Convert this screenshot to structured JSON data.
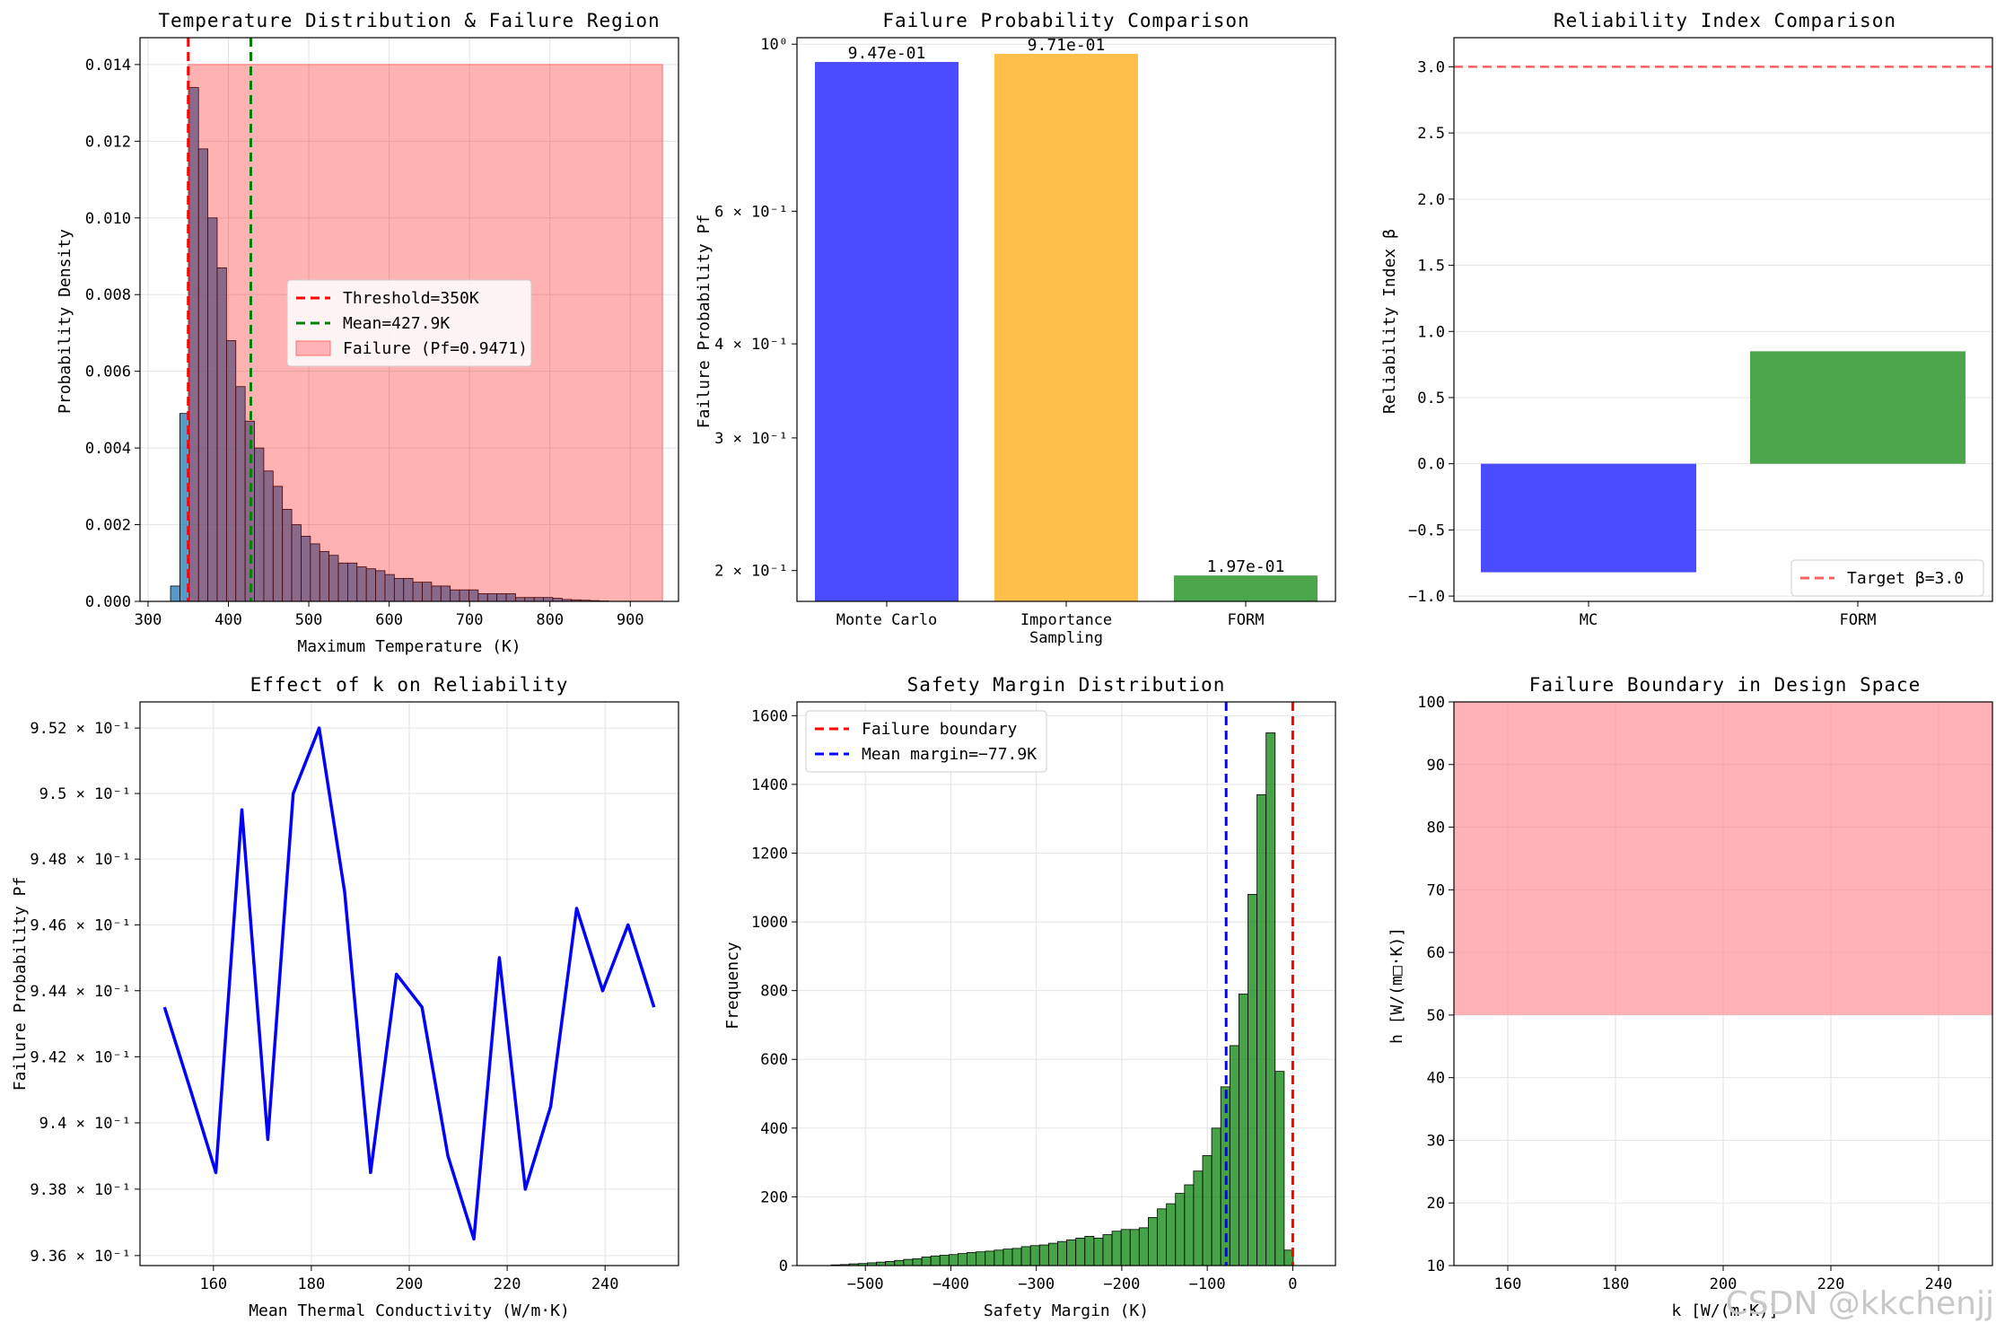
{
  "watermark": "CSDN @kkchenjj",
  "colors": {
    "blue": "#0000ff",
    "red": "#ff0000",
    "green": "#008000",
    "orange": "#ffa500",
    "hist": "#1f77b4",
    "failfill": "#ff9da3"
  },
  "chart_data": [
    {
      "id": "temp",
      "type": "bar",
      "title": "Temperature Distribution & Failure Region",
      "xlabel": "Maximum Temperature (K)",
      "ylabel": "Probability Density",
      "xlim": [
        290,
        960
      ],
      "ylim": [
        0,
        0.0147
      ],
      "xticks": [
        300,
        400,
        500,
        600,
        700,
        800,
        900
      ],
      "yticks": [
        0.0,
        0.002,
        0.004,
        0.006,
        0.008,
        0.01,
        0.012,
        0.014
      ],
      "ytick_labels": [
        "0.000",
        "0.002",
        "0.004",
        "0.006",
        "0.008",
        "0.010",
        "0.012",
        "0.014"
      ],
      "bin_start": 328,
      "bin_width": 11.6,
      "densities": [
        0.0004,
        0.0049,
        0.0134,
        0.0118,
        0.01,
        0.0087,
        0.0068,
        0.0056,
        0.0047,
        0.004,
        0.0034,
        0.003,
        0.0024,
        0.002,
        0.0017,
        0.0015,
        0.0013,
        0.0012,
        0.001,
        0.001,
        0.0009,
        0.00085,
        0.0008,
        0.0007,
        0.0006,
        0.0006,
        0.0005,
        0.0005,
        0.0004,
        0.0004,
        0.0003,
        0.0003,
        0.0003,
        0.0002,
        0.0002,
        0.0002,
        0.0002,
        0.0001,
        0.0001,
        0.0001,
        0.0001,
        8e-05,
        5e-05,
        4e-05,
        3e-05,
        2e-05,
        1e-05
      ],
      "threshold": 350,
      "mean": 427.9,
      "failure_region": {
        "x0": 350,
        "x1": 940,
        "y1": 0.014
      },
      "legend": [
        "Threshold=350K",
        "Mean=427.9K",
        "Failure (Pf=0.9471)"
      ],
      "legend_position": "center-right"
    },
    {
      "id": "pf",
      "type": "bar",
      "title": "Failure Probability Comparison",
      "ylabel": "Failure Probability Pf",
      "yscale": "log",
      "ylim": [
        0.182,
        1.02
      ],
      "categories": [
        [
          "Monte Carlo"
        ],
        [
          "Importance",
          "Sampling"
        ],
        [
          "FORM"
        ]
      ],
      "values": [
        0.947,
        0.971,
        0.197
      ],
      "value_labels": [
        "9.47e-01",
        "9.71e-01",
        "1.97e-01"
      ],
      "colors": [
        "#4b4bff",
        "#ffbf4b",
        "#4ca64c"
      ],
      "yticks": [
        1.0,
        0.6,
        0.4,
        0.3,
        0.2
      ],
      "ytick_labels": [
        "10⁰",
        "6 × 10⁻¹",
        "4 × 10⁻¹",
        "3 × 10⁻¹",
        "2 × 10⁻¹"
      ]
    },
    {
      "id": "beta",
      "type": "bar",
      "title": "Reliability Index Comparison",
      "ylabel": "Reliability Index β",
      "ylim": [
        -1.04,
        3.22
      ],
      "categories": [
        "MC",
        "FORM"
      ],
      "values": [
        -0.82,
        0.85
      ],
      "colors": [
        "#4b4bff",
        "#4ca64c"
      ],
      "yticks": [
        -1.0,
        -0.5,
        0.0,
        0.5,
        1.0,
        1.5,
        2.0,
        2.5,
        3.0
      ],
      "ytick_labels": [
        "−1.0",
        "−0.5",
        "0.0",
        "0.5",
        "1.0",
        "1.5",
        "2.0",
        "2.5",
        "3.0"
      ],
      "target": 3.0,
      "legend": [
        "Target β=3.0"
      ],
      "legend_position": "lower-right"
    },
    {
      "id": "keffect",
      "type": "line",
      "title": "Effect of k on Reliability",
      "xlabel": "Mean Thermal Conductivity (W/m·K)",
      "ylabel": "Failure Probability Pf",
      "yscale": "log",
      "xlim": [
        145,
        255
      ],
      "ylim": [
        0.9357,
        0.9528
      ],
      "x": [
        150,
        155.3,
        160.5,
        165.8,
        171.1,
        176.3,
        181.6,
        186.8,
        192.1,
        197.4,
        202.6,
        207.9,
        213.2,
        218.4,
        223.7,
        228.9,
        234.2,
        239.5,
        244.7,
        250
      ],
      "y": [
        0.9435,
        0.941,
        0.9385,
        0.9495,
        0.9395,
        0.95,
        0.952,
        0.947,
        0.9385,
        0.9445,
        0.9435,
        0.939,
        0.9365,
        0.945,
        0.938,
        0.9405,
        0.9465,
        0.944,
        0.946,
        0.9435
      ],
      "xticks": [
        160,
        180,
        200,
        220,
        240
      ],
      "yticks": [
        0.952,
        0.95,
        0.948,
        0.946,
        0.944,
        0.942,
        0.94,
        0.938,
        0.936
      ],
      "ytick_labels": [
        "9.52 × 10⁻¹",
        "9.5 × 10⁻¹",
        "9.48 × 10⁻¹",
        "9.46 × 10⁻¹",
        "9.44 × 10⁻¹",
        "9.42 × 10⁻¹",
        "9.4 × 10⁻¹",
        "9.38 × 10⁻¹",
        "9.36 × 10⁻¹"
      ]
    },
    {
      "id": "margin",
      "type": "bar",
      "title": "Safety Margin Distribution",
      "xlabel": "Safety Margin (K)",
      "ylabel": "Frequency",
      "xlim": [
        -580,
        50
      ],
      "ylim": [
        0,
        1640
      ],
      "xticks": [
        -500,
        -400,
        -300,
        -200,
        -100,
        0
      ],
      "xtick_labels": [
        "−500",
        "−400",
        "−300",
        "−200",
        "−100",
        "0"
      ],
      "yticks": [
        0,
        200,
        400,
        600,
        800,
        1000,
        1200,
        1400,
        1600
      ],
      "bin_start": -540,
      "bin_width": 10.6,
      "counts": [
        2,
        3,
        5,
        6,
        8,
        10,
        12,
        15,
        18,
        20,
        25,
        28,
        30,
        32,
        35,
        38,
        40,
        42,
        45,
        48,
        50,
        55,
        58,
        60,
        65,
        70,
        75,
        80,
        85,
        80,
        90,
        100,
        105,
        105,
        110,
        140,
        165,
        180,
        210,
        235,
        275,
        320,
        400,
        520,
        640,
        790,
        1080,
        1370,
        1550,
        565,
        45
      ],
      "boundary": 0,
      "mean_margin": -77.9,
      "legend": [
        "Failure boundary",
        "Mean margin=−77.9K"
      ],
      "legend_position": "top-left"
    },
    {
      "id": "design",
      "type": "area",
      "title": "Failure Boundary in Design Space",
      "xlabel": "k [W/(m·K)]",
      "ylabel": "h [W/(m□·K)]",
      "xlim": [
        150,
        250
      ],
      "ylim": [
        10,
        100
      ],
      "xticks": [
        160,
        180,
        200,
        220,
        240
      ],
      "yticks": [
        10,
        20,
        30,
        40,
        50,
        60,
        70,
        80,
        90,
        100
      ],
      "failure_region": {
        "h_min": 50,
        "h_max": 100
      }
    }
  ]
}
